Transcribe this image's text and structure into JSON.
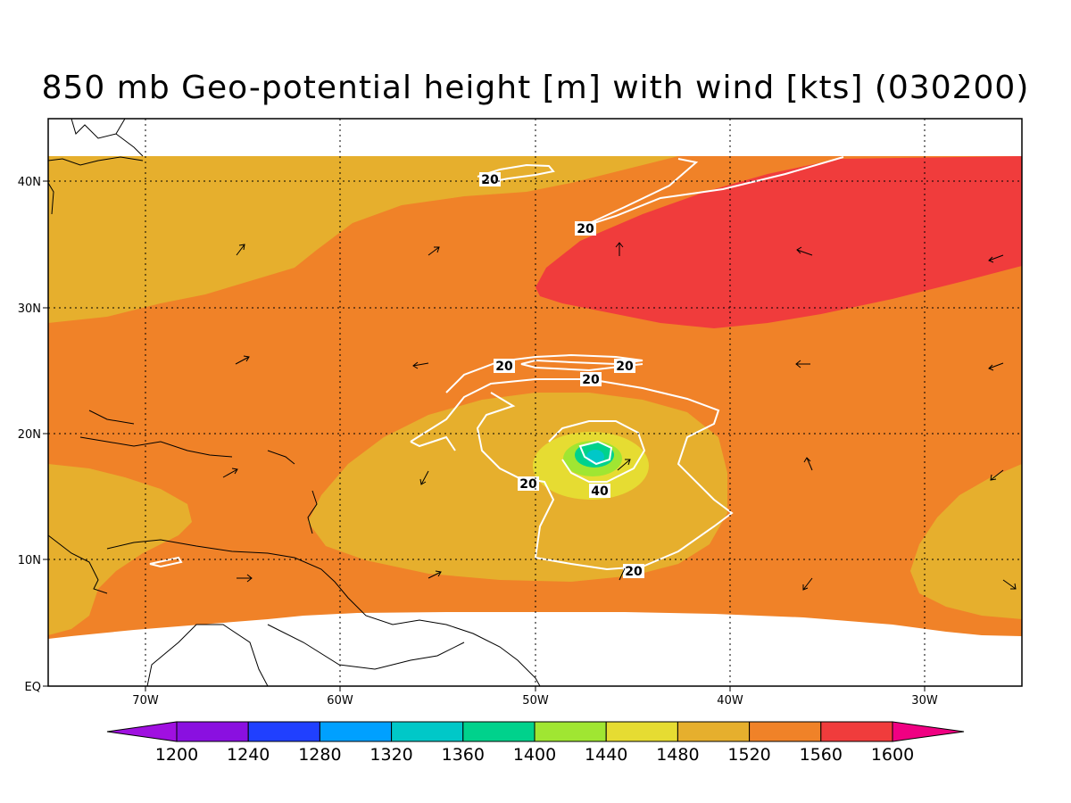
{
  "title": "850 mb Geo-potential height [m] with wind [kts] (030200)",
  "y_axis_labels": [
    "40N",
    "30N",
    "20N",
    "10N",
    "EQ"
  ],
  "x_axis_labels": [
    "70W",
    "60W",
    "50W",
    "40W",
    "30W"
  ],
  "contour_labels": [
    "20",
    "20",
    "20",
    "20",
    "20",
    "20",
    "40",
    "20"
  ],
  "colorbar": {
    "labels": [
      "1200",
      "1240",
      "1280",
      "1320",
      "1360",
      "1400",
      "1440",
      "1480",
      "1520",
      "1560",
      "1600"
    ],
    "colors": [
      "#a010e0",
      "#8a10e0",
      "#2040ff",
      "#00a0ff",
      "#00c8c8",
      "#00d28c",
      "#a0e632",
      "#e6dc32",
      "#e6af2d",
      "#f08228",
      "#f03c3c",
      "#f00082"
    ]
  },
  "colors": {
    "c1480": "#e6dc32",
    "c1520": "#e6af2d",
    "c1560": "#f08228",
    "c1600": "#f03c3c",
    "c1440": "#a0e632",
    "c1400": "#00d28c",
    "c1360": "#00c8c8",
    "contour": "#ffffff"
  }
}
